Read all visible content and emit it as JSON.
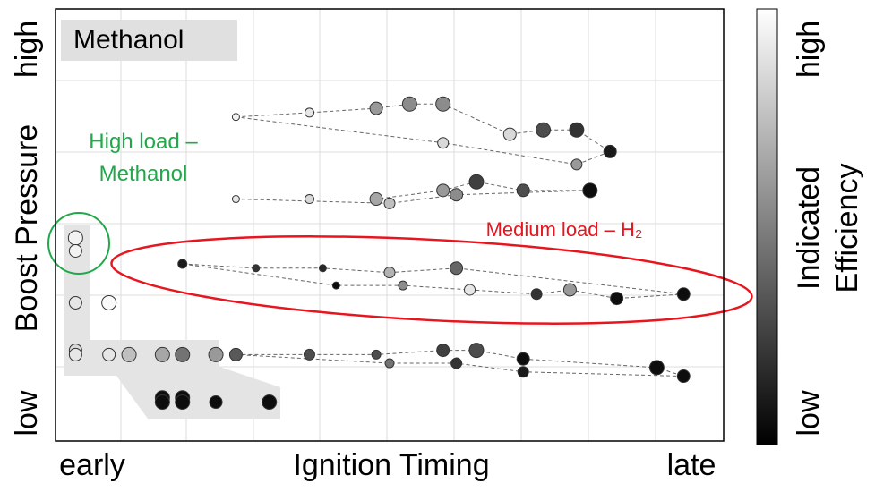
{
  "chart_data": {
    "type": "scatter",
    "y_label": "Boost Pressure",
    "y_low": "low",
    "y_high": "high",
    "x_label": "Ignition Timing",
    "x_low": "early",
    "x_high": "late",
    "colorbar_label": [
      "Indicated",
      "Efficiency"
    ],
    "colorbar_low": "low",
    "colorbar_high": "high",
    "box_label": "Methanol",
    "annotations": [
      {
        "text": [
          "High load –",
          "Methanol"
        ],
        "color": "#22a84a"
      },
      {
        "text": [
          "Medium load – H₂"
        ],
        "color": "#e8141e"
      }
    ],
    "xlim": [
      0,
      100
    ],
    "ylim": [
      0,
      100
    ],
    "series": [
      {
        "dashed": true,
        "x": [
          27,
          38,
          48,
          53,
          58,
          68,
          73,
          78,
          83,
          78,
          58
        ],
        "y": [
          75,
          76,
          77,
          78,
          78,
          71,
          72,
          72,
          67,
          64,
          69
        ],
        "sizes": [
          4,
          5,
          7,
          8,
          8,
          7,
          8,
          8,
          7,
          6,
          6
        ],
        "values": [
          95,
          90,
          60,
          55,
          55,
          85,
          30,
          20,
          10,
          60,
          85
        ]
      },
      {
        "dashed": true,
        "x": [
          27,
          38,
          48,
          58,
          63,
          70,
          80,
          60,
          50
        ],
        "y": [
          56,
          56,
          56,
          58,
          60,
          58,
          58,
          57,
          55
        ],
        "sizes": [
          4,
          5,
          7,
          7,
          8,
          7,
          8,
          7,
          6
        ],
        "values": [
          90,
          85,
          65,
          60,
          25,
          30,
          5,
          55,
          75
        ]
      },
      {
        "dashed": true,
        "x": [
          19,
          30,
          40,
          50,
          60,
          94,
          84,
          77,
          72,
          62,
          52,
          42
        ],
        "y": [
          41,
          40,
          40,
          39,
          40,
          34,
          33,
          35,
          34,
          35,
          36,
          36
        ],
        "sizes": [
          5,
          4,
          4,
          6,
          7,
          7,
          7,
          7,
          6,
          6,
          5,
          4
        ],
        "values": [
          10,
          20,
          15,
          70,
          40,
          5,
          5,
          60,
          20,
          90,
          55,
          5
        ]
      },
      {
        "dashed": true,
        "x": [
          27,
          38,
          48,
          58,
          63,
          70,
          90,
          94,
          70,
          60,
          50
        ],
        "y": [
          20,
          20,
          20,
          21,
          21,
          19,
          17,
          15,
          16,
          18,
          18
        ],
        "sizes": [
          7,
          6,
          5,
          7,
          8,
          7,
          8,
          7,
          6,
          6,
          5
        ],
        "values": [
          35,
          30,
          30,
          25,
          30,
          5,
          5,
          5,
          10,
          20,
          45
        ]
      },
      {
        "dashed": false,
        "x": [
          3,
          3,
          3,
          8,
          3,
          3,
          8,
          11,
          16,
          19,
          24,
          16,
          16,
          19,
          19,
          24,
          32
        ],
        "y": [
          47,
          44,
          32,
          32,
          21,
          20,
          20,
          20,
          20,
          20,
          20,
          10,
          9,
          10,
          9,
          9,
          9
        ],
        "sizes": [
          8,
          7,
          7,
          8,
          7,
          7,
          7,
          8,
          8,
          8,
          8,
          8,
          8,
          8,
          8,
          7,
          8
        ],
        "values": [
          95,
          95,
          90,
          98,
          85,
          90,
          90,
          75,
          65,
          45,
          60,
          5,
          5,
          5,
          5,
          5,
          5
        ]
      }
    ]
  }
}
